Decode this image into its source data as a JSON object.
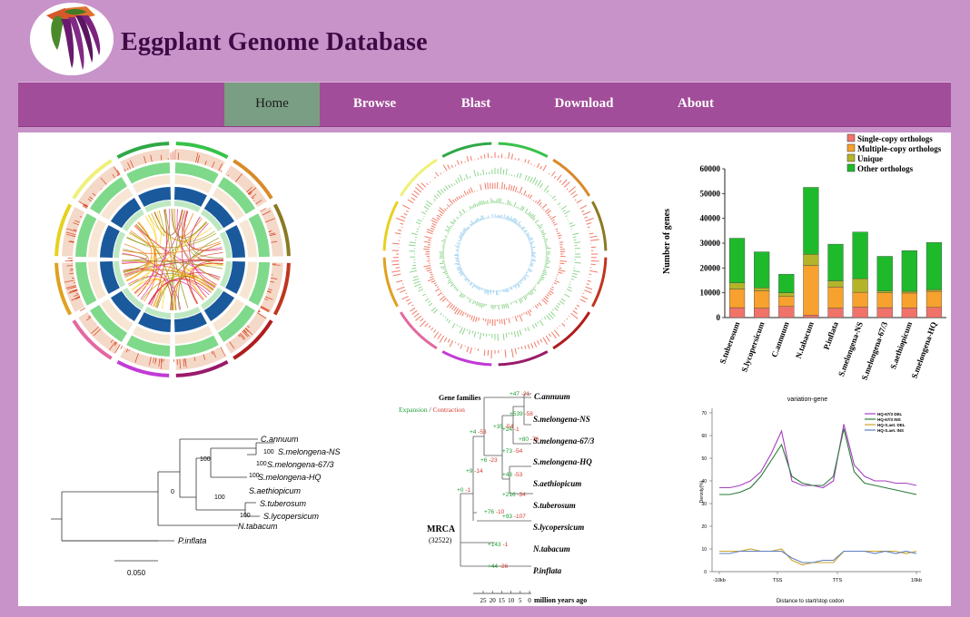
{
  "site": {
    "title": "Eggplant Genome Database"
  },
  "nav": {
    "items": [
      {
        "label": "Home",
        "active": true
      },
      {
        "label": "Browse",
        "active": false
      },
      {
        "label": "Blast",
        "active": false
      },
      {
        "label": "Download",
        "active": false
      },
      {
        "label": "About",
        "active": false
      }
    ]
  },
  "colors": {
    "page_bg": "#c793c9",
    "nav_bg": "#a24d9a",
    "nav_active": "#7a9e83",
    "title": "#3d0a45"
  },
  "chart_data": [
    {
      "type": "bar",
      "stacked": true,
      "categories": [
        "S.tuberosum",
        "S.lycopersicum",
        "C.annuum",
        "N.tabacum",
        "P.inflata",
        "S.melongena-NS",
        "S.melongena-67/3",
        "S.aethiopicum",
        "S.melongena-HQ"
      ],
      "series": [
        {
          "name": "Single-copy orthologs",
          "color": "#f0736a",
          "values": [
            4000,
            3800,
            4500,
            1000,
            3800,
            4200,
            4000,
            3900,
            4100
          ]
        },
        {
          "name": "Multiple-copy orthologs",
          "color": "#f7a12e",
          "values": [
            7500,
            7000,
            4000,
            20000,
            8500,
            6000,
            6000,
            6000,
            6500
          ]
        },
        {
          "name": "Unique",
          "color": "#b4b42a",
          "values": [
            2500,
            1200,
            1500,
            4500,
            2500,
            5500,
            700,
            700,
            700
          ]
        },
        {
          "name": "Other orthologs",
          "color": "#1fba2c",
          "values": [
            18000,
            14500,
            7500,
            27000,
            14800,
            18800,
            14000,
            16400,
            19000
          ]
        }
      ],
      "ylabel": "Number of genes",
      "ylim": [
        0,
        60000
      ],
      "yticks": [
        "0",
        "10000",
        "20000",
        "30000",
        "40000",
        "50000",
        "60000"
      ],
      "legend": "top-right"
    },
    {
      "type": "line",
      "title": "variation-gene",
      "xlabel": "Distance to start/stop codon",
      "ylabel": "Density(%)",
      "xticks": [
        "-10kb",
        "TSS",
        "TTS",
        "10kb"
      ],
      "yticks": [
        "0",
        "10",
        "20",
        "30",
        "40",
        "50",
        "60",
        "70"
      ],
      "ylim": [
        0,
        72
      ],
      "series": [
        {
          "name": "HQ-67/3 DEL",
          "color": "#a73fc0",
          "values": [
            37,
            37,
            38,
            40,
            44,
            52,
            62,
            40,
            38,
            38,
            37,
            40,
            65,
            47,
            42,
            40,
            40,
            39,
            39,
            38
          ]
        },
        {
          "name": "HQ-67/3 INS",
          "color": "#2b7a3a",
          "values": [
            34,
            34,
            35,
            37,
            42,
            49,
            56,
            42,
            39,
            38,
            38,
            42,
            63,
            44,
            39,
            38,
            37,
            36,
            35,
            34
          ]
        },
        {
          "name": "HQ-S.aet. DEL",
          "color": "#c9a62a",
          "values": [
            9,
            9,
            9,
            10,
            9,
            9,
            10,
            5,
            3,
            4,
            4,
            4,
            9,
            9,
            9,
            9,
            9,
            9,
            8,
            9
          ]
        },
        {
          "name": "HQ-S.aet. INS",
          "color": "#5f7fbf",
          "values": [
            8,
            8,
            9,
            9,
            9,
            9,
            9,
            6,
            4,
            4,
            5,
            5,
            9,
            9,
            9,
            8,
            9,
            8,
            9,
            8
          ]
        }
      ],
      "legend": "top-right"
    }
  ],
  "tree": {
    "taxa": [
      "C.annuum",
      "S.melongena-NS",
      "S.melongena-67/3",
      "S.melongena-HQ",
      "S.aethiopicum",
      "S.tuberosum",
      "S.lycopersicum",
      "N.tabacum",
      "P.inflata"
    ],
    "bootstraps": [
      "100",
      "100",
      "100",
      "100",
      "100",
      "100",
      "0"
    ],
    "scale": "0.050"
  },
  "timetree": {
    "header": "Gene families",
    "expansion": "Expansion",
    "separator": " / ",
    "contraction": "Contraction",
    "root_label": "MRCA",
    "root_count": "(32522)",
    "axis_ticks": [
      "25",
      "20",
      "15",
      "10",
      "5",
      "0"
    ],
    "axis_unit": "million years ago",
    "taxa": [
      "C.annuum",
      "S.melongena-NS",
      "S.melongena-67/3",
      "S.melongena-HQ",
      "S.aethiopicum",
      "S.tuberosum",
      "S.lycopersicum",
      "N.tabacum",
      "P.inflata"
    ],
    "tip_changes": [
      [
        "+47",
        "-21"
      ],
      [
        "+539",
        "-58"
      ],
      [
        "+24",
        "-1"
      ],
      [
        "+73",
        "-54"
      ],
      [
        "+43",
        "-53"
      ],
      [
        "+216",
        "-34"
      ],
      [
        "+93",
        "-107"
      ],
      [
        "+143",
        "-1"
      ],
      [
        "+44",
        "-26"
      ]
    ],
    "node_changes": [
      [
        "+35",
        "-54"
      ],
      [
        "+80",
        "-76"
      ],
      [
        "+6",
        "-23"
      ],
      [
        "+4",
        "-53"
      ],
      [
        "+9",
        "-14"
      ],
      [
        "+76",
        "-10"
      ],
      [
        "+0",
        "-1"
      ]
    ]
  }
}
